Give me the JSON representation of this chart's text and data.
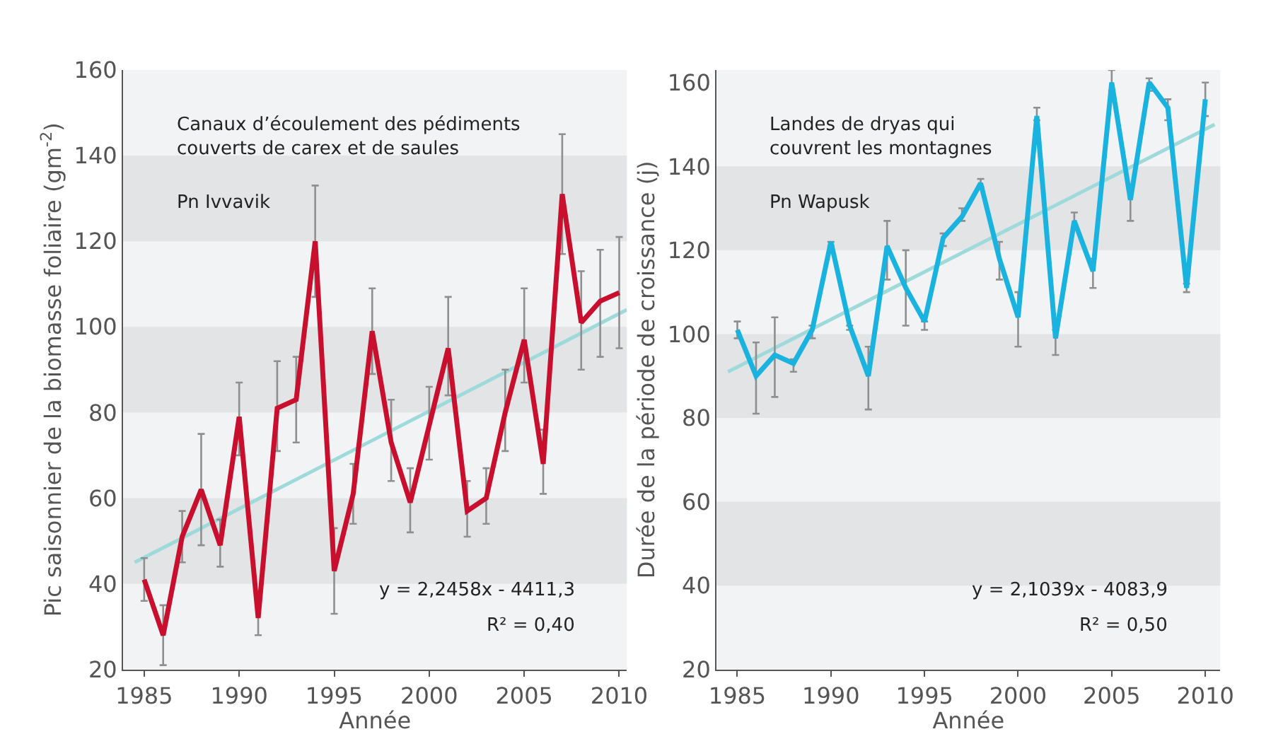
{
  "chart_data": [
    {
      "type": "line",
      "title": "Canaux d’écoulement des pédiments\ncouverts de carex et de saules",
      "subtitle": "Pn Ivvavik",
      "xlabel": "Année",
      "ylabel": "Pic saisonnier de la biomasse foliaire (gm$^{-2}$)",
      "xlim": [
        1983.9,
        2010.4
      ],
      "xticks": [
        1985,
        1990,
        1995,
        2000,
        2005,
        2010
      ],
      "ylim": [
        20,
        160
      ],
      "yticks": [
        20,
        40,
        60,
        80,
        100,
        120,
        140,
        160
      ],
      "grid": false,
      "marker": "none",
      "line_style": "solid",
      "bands": [
        {
          "axis": "y",
          "from": 40,
          "to": 60,
          "color": "#e2e4e5"
        },
        {
          "axis": "y",
          "from": 80,
          "to": 100,
          "color": "#e2e4e5"
        },
        {
          "axis": "y",
          "from": 120,
          "to": 140,
          "color": "#e2e4e5"
        }
      ],
      "annotations": [
        "y = 2,2458x - 4411,3",
        "R² = 0,40"
      ],
      "series": [
        {
          "color": "#9fdadb",
          "x": [
            1984.5,
            2010.4
          ],
          "values": [
            45,
            104
          ]
        },
        {
          "color": "#c8102e",
          "x": [
            1985,
            1986,
            1987,
            1988,
            1989,
            1990,
            1991,
            1992,
            1993,
            1994,
            1995,
            1996,
            1997,
            1998,
            1999,
            2000,
            2001,
            2002,
            2003,
            2004,
            2005,
            2006,
            2007,
            2008,
            2009,
            2010
          ],
          "values": [
            41,
            28,
            51,
            62,
            49,
            79,
            32,
            81,
            83,
            120,
            43,
            61,
            99,
            73,
            59,
            77,
            95,
            57,
            60,
            80,
            97,
            68,
            131,
            101,
            106,
            108
          ],
          "errors": [
            [
              36,
              46
            ],
            [
              21,
              35
            ],
            [
              45,
              57
            ],
            [
              49,
              75
            ],
            [
              44,
              55
            ],
            [
              70,
              87
            ],
            [
              28,
              36
            ],
            [
              71,
              92
            ],
            [
              73,
              93
            ],
            [
              107,
              133
            ],
            [
              33,
              53
            ],
            [
              54,
              68
            ],
            [
              89,
              109
            ],
            [
              64,
              83
            ],
            [
              52,
              67
            ],
            [
              69,
              86
            ],
            [
              84,
              107
            ],
            [
              51,
              64
            ],
            [
              54,
              67
            ],
            [
              71,
              90
            ],
            [
              87,
              109
            ],
            [
              61,
              76
            ],
            [
              117,
              145
            ],
            [
              90,
              113
            ],
            [
              93,
              118
            ],
            [
              95,
              121
            ]
          ]
        }
      ]
    },
    {
      "type": "line",
      "title": "Landes de dryas qui\ncouvrent les montagnes",
      "subtitle": "Pn Wapusk",
      "xlabel": "Année",
      "ylabel": "Durée de la période de croissance (j)",
      "xlim": [
        1983.9,
        2010.8
      ],
      "xticks": [
        1985,
        1990,
        1995,
        2000,
        2005,
        2010
      ],
      "ylim": [
        20,
        163
      ],
      "yticks": [
        20,
        40,
        60,
        80,
        100,
        120,
        140,
        160
      ],
      "grid": false,
      "marker": "none",
      "line_style": "solid",
      "bands": [
        {
          "axis": "y",
          "from": 40,
          "to": 60,
          "color": "#e2e4e5"
        },
        {
          "axis": "y",
          "from": 80,
          "to": 100,
          "color": "#e2e4e5"
        },
        {
          "axis": "y",
          "from": 120,
          "to": 140,
          "color": "#e2e4e5"
        }
      ],
      "annotations": [
        "y = 2,1039x - 4083,9",
        "R² = 0,50"
      ],
      "series": [
        {
          "color": "#9fdadb",
          "x": [
            1984.5,
            2010.5
          ],
          "values": [
            91,
            150
          ]
        },
        {
          "color": "#1ab3e0",
          "x": [
            1985,
            1986,
            1987,
            1988,
            1989,
            1990,
            1991,
            1992,
            1993,
            1994,
            1995,
            1996,
            1997,
            1998,
            1999,
            2000,
            2001,
            2002,
            2003,
            2004,
            2005,
            2006,
            2007,
            2008,
            2009,
            2010
          ],
          "values": [
            101,
            90,
            95,
            93,
            101,
            122,
            102,
            90,
            121,
            111,
            103,
            123,
            128,
            136,
            118,
            104,
            152,
            99,
            127,
            115,
            160,
            132,
            160,
            154,
            111,
            156
          ],
          "errors": [
            [
              99,
              103
            ],
            [
              81,
              98
            ],
            [
              85,
              104
            ],
            [
              91,
              94
            ],
            [
              99,
              102
            ],
            [
              121,
              122
            ],
            [
              101,
              102
            ],
            [
              82,
              97
            ],
            [
              113,
              127
            ],
            [
              102,
              120
            ],
            [
              101,
              103
            ],
            [
              121,
              124
            ],
            [
              127,
              130
            ],
            [
              135,
              137
            ],
            [
              113,
              122
            ],
            [
              97,
              110
            ],
            [
              151,
              154
            ],
            [
              95,
              101
            ],
            [
              125,
              129
            ],
            [
              111,
              118
            ],
            [
              158,
              163
            ],
            [
              127,
              135
            ],
            [
              158,
              161
            ],
            [
              151,
              156
            ],
            [
              110,
              112
            ],
            [
              152,
              160
            ]
          ]
        }
      ]
    }
  ]
}
